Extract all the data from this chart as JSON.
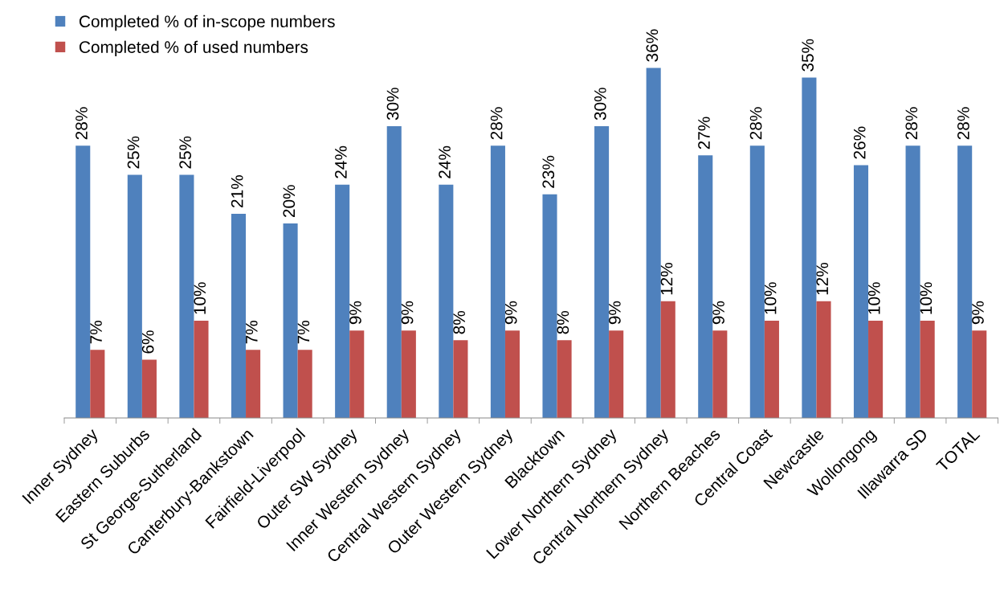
{
  "chart_data": {
    "type": "bar",
    "categories": [
      "Inner Sydney",
      "Eastern Suburbs",
      "St George-Sutherland",
      "Canterbury-Bankstown",
      "Fairfield-Liverpool",
      "Outer SW Sydney",
      "Inner Western Sydney",
      "Central Western Sydney",
      "Outer Western Sydney",
      "Blacktown",
      "Lower Northern Sydney",
      "Central Northern Sydney",
      "Northern Beaches",
      "Central Coast",
      "Newcastle",
      "Wollongong",
      "Illawarra SD",
      "TOTAL"
    ],
    "series": [
      {
        "name": "Completed % of in-scope numbers",
        "color": "#4f81bd",
        "values": [
          28,
          25,
          25,
          21,
          20,
          24,
          30,
          24,
          28,
          23,
          30,
          36,
          27,
          28,
          35,
          26,
          28,
          28
        ],
        "value_labels": [
          "28%",
          "25%",
          "25%",
          "21%",
          "20%",
          "24%",
          "30%",
          "24%",
          "28%",
          "23%",
          "30%",
          "36%",
          "27%",
          "28%",
          "35%",
          "26%",
          "28%",
          "28%"
        ]
      },
      {
        "name": "Completed % of used numbers",
        "color": "#c0504d",
        "values": [
          7,
          6,
          10,
          7,
          7,
          9,
          9,
          8,
          9,
          8,
          9,
          12,
          9,
          10,
          12,
          10,
          10,
          9
        ],
        "value_labels": [
          "7%",
          "6%",
          "10%",
          "7%",
          "7%",
          "9%",
          "9%",
          "8%",
          "9%",
          "8%",
          "9%",
          "12%",
          "9%",
          "10%",
          "12%",
          "10%",
          "10%",
          "9%"
        ]
      }
    ],
    "legend": "top left"
  }
}
